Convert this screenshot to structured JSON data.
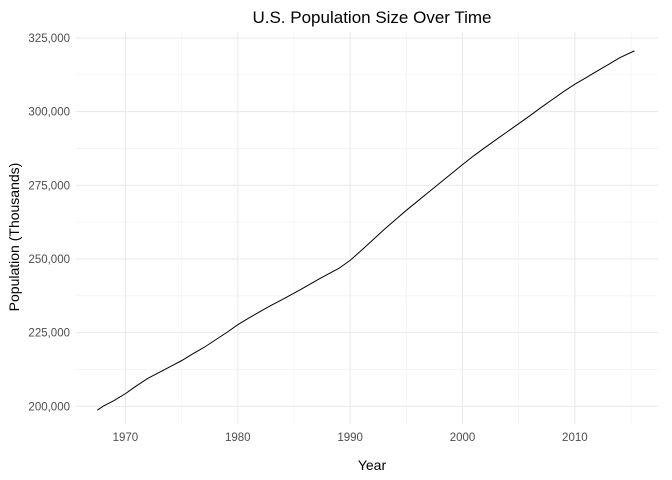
{
  "chart_data": {
    "type": "line",
    "title": "U.S. Population Size Over Time",
    "xlabel": "Year",
    "ylabel": "Population (Thousands)",
    "xlim": [
      1965.6,
      2017.4
    ],
    "ylim": [
      194000,
      327000
    ],
    "x_ticks": [
      1970,
      1980,
      1990,
      2000,
      2010
    ],
    "x_tick_labels": [
      "1970",
      "1980",
      "1990",
      "2000",
      "2010"
    ],
    "y_ticks": [
      200000,
      225000,
      250000,
      275000,
      300000,
      325000
    ],
    "y_tick_labels": [
      "200,000",
      "225,000",
      "250,000",
      "275,000",
      "300,000",
      "325,000"
    ],
    "grid": true,
    "legend": "none",
    "series": [
      {
        "color": "#000000",
        "x": [
          1967.5,
          1968,
          1969,
          1970,
          1971,
          1972,
          1973,
          1974,
          1975,
          1976,
          1977,
          1978,
          1979,
          1980,
          1981,
          1982,
          1983,
          1984,
          1985,
          1986,
          1987,
          1988,
          1989,
          1990,
          1991,
          1992,
          1993,
          1994,
          1995,
          1996,
          1997,
          1998,
          1999,
          2000,
          2001,
          2002,
          2003,
          2004,
          2005,
          2006,
          2007,
          2008,
          2009,
          2010,
          2011,
          2012,
          2013,
          2014,
          2015.3
        ],
        "y": [
          198700,
          200000,
          202000,
          204300,
          207000,
          209500,
          211500,
          213500,
          215500,
          217800,
          220000,
          222500,
          225000,
          227700,
          230000,
          232200,
          234300,
          236300,
          238400,
          240500,
          242700,
          244800,
          246800,
          249500,
          252900,
          256400,
          259900,
          263200,
          266500,
          269600,
          272700,
          275800,
          278900,
          282000,
          285000,
          287800,
          290500,
          293200,
          295900,
          298600,
          301400,
          304100,
          306800,
          309300,
          311500,
          313800,
          316000,
          318300,
          320600
        ]
      }
    ]
  }
}
